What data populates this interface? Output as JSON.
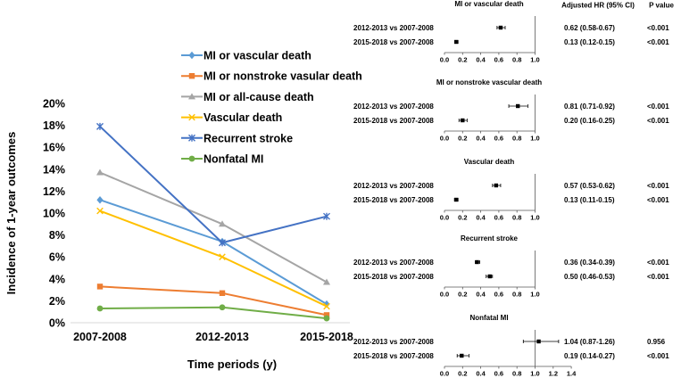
{
  "chart_data": [
    {
      "type": "line",
      "title": "",
      "xlabel": "Time periods (y)",
      "ylabel": "Incidence of 1-year outcomes",
      "categories": [
        "2007-2008",
        "2012-2013",
        "2015-2018"
      ],
      "y_ticks": [
        "0%",
        "2%",
        "4%",
        "6%",
        "8%",
        "10%",
        "12%",
        "14%",
        "16%",
        "18%",
        "20%"
      ],
      "ylim": [
        0,
        20
      ],
      "legend_position": "top-center",
      "series": [
        {
          "name": "MI or vascular death",
          "color": "#5b9bd5",
          "marker": "diamond",
          "values": [
            11.2,
            7.4,
            1.7
          ]
        },
        {
          "name": "MI or nonstroke vasular death",
          "color": "#ed7d31",
          "marker": "square",
          "values": [
            3.3,
            2.7,
            0.7
          ]
        },
        {
          "name": "MI or all-cause death",
          "color": "#a5a5a5",
          "marker": "triangle",
          "values": [
            13.7,
            9.0,
            3.7
          ]
        },
        {
          "name": "Vascular death",
          "color": "#ffc000",
          "marker": "x",
          "values": [
            10.2,
            6.0,
            1.5
          ]
        },
        {
          "name": "Recurrent stroke",
          "color": "#4472c4",
          "marker": "star",
          "values": [
            17.9,
            7.3,
            9.7
          ]
        },
        {
          "name": "Nonfatal MI",
          "color": "#70ad47",
          "marker": "circle",
          "values": [
            1.3,
            1.4,
            0.4
          ]
        }
      ]
    },
    {
      "type": "forest",
      "header_hr": "Adjusted HR (95% CI)",
      "header_p": "P value",
      "panels": [
        {
          "title": "MI or vascular death",
          "xlim": [
            0,
            1.0
          ],
          "ticks": [
            "0.0",
            "0.2",
            "0.4",
            "0.6",
            "0.8",
            "1.0"
          ],
          "rows": [
            {
              "label": "2012-2013 vs 2007-2008",
              "hr": 0.62,
              "lo": 0.58,
              "hi": 0.67,
              "hr_text": "0.62 (0.58-0.67)",
              "p": "<0.001"
            },
            {
              "label": "2015-2018 vs 2007-2008",
              "hr": 0.13,
              "lo": 0.12,
              "hi": 0.15,
              "hr_text": "0.13 (0.12-0.15)",
              "p": "<0.001"
            }
          ]
        },
        {
          "title": "MI or nonstroke vascular death",
          "xlim": [
            0,
            1.0
          ],
          "ticks": [
            "0.0",
            "0.2",
            "0.4",
            "0.6",
            "0.8",
            "1.0"
          ],
          "rows": [
            {
              "label": "2012-2013 vs 2007-2008",
              "hr": 0.81,
              "lo": 0.71,
              "hi": 0.92,
              "hr_text": "0.81 (0.71-0.92)",
              "p": "<0.001"
            },
            {
              "label": "2015-2018 vs 2007-2008",
              "hr": 0.2,
              "lo": 0.16,
              "hi": 0.25,
              "hr_text": "0.20 (0.16-0.25)",
              "p": "<0.001"
            }
          ]
        },
        {
          "title": "Vascular death",
          "xlim": [
            0,
            1.0
          ],
          "ticks": [
            "0.0",
            "0.2",
            "0.4",
            "0.6",
            "0.8",
            "1.0"
          ],
          "rows": [
            {
              "label": "2012-2013 vs 2007-2008",
              "hr": 0.57,
              "lo": 0.53,
              "hi": 0.62,
              "hr_text": "0.57 (0.53-0.62)",
              "p": "<0.001"
            },
            {
              "label": "2015-2018 vs 2007-2008",
              "hr": 0.13,
              "lo": 0.11,
              "hi": 0.15,
              "hr_text": "0.13 (0.11-0.15)",
              "p": "<0.001"
            }
          ]
        },
        {
          "title": "Recurrent stroke",
          "xlim": [
            0,
            1.0
          ],
          "ticks": [
            "0.0",
            "0.2",
            "0.4",
            "0.6",
            "0.8",
            "1.0"
          ],
          "rows": [
            {
              "label": "2012-2013 vs 2007-2008",
              "hr": 0.36,
              "lo": 0.34,
              "hi": 0.39,
              "hr_text": "0.36 (0.34-0.39)",
              "p": "<0.001"
            },
            {
              "label": "2015-2018 vs 2007-2008",
              "hr": 0.5,
              "lo": 0.46,
              "hi": 0.53,
              "hr_text": "0.50 (0.46-0.53)",
              "p": "<0.001"
            }
          ]
        },
        {
          "title": "Nonfatal MI",
          "xlim": [
            0,
            1.4
          ],
          "ticks": [
            "0.0",
            "0.2",
            "0.4",
            "0.6",
            "0.8",
            "1.0",
            "1.2",
            "1.4"
          ],
          "rows": [
            {
              "label": "2012-2013 vs 2007-2008",
              "hr": 1.04,
              "lo": 0.87,
              "hi": 1.26,
              "hr_text": "1.04 (0.87-1.26)",
              "p": "0.956"
            },
            {
              "label": "2015-2018 vs 2007-2008",
              "hr": 0.19,
              "lo": 0.14,
              "hi": 0.27,
              "hr_text": "0.19 (0.14-0.27)",
              "p": "<0.001"
            }
          ]
        }
      ]
    }
  ]
}
